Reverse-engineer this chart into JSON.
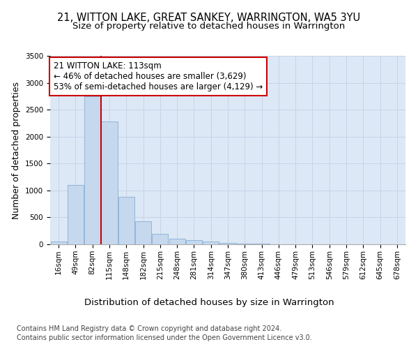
{
  "title": "21, WITTON LAKE, GREAT SANKEY, WARRINGTON, WA5 3YU",
  "subtitle": "Size of property relative to detached houses in Warrington",
  "xlabel": "Distribution of detached houses by size in Warrington",
  "ylabel": "Number of detached properties",
  "bin_labels": [
    "16sqm",
    "49sqm",
    "82sqm",
    "115sqm",
    "148sqm",
    "182sqm",
    "215sqm",
    "248sqm",
    "281sqm",
    "314sqm",
    "347sqm",
    "380sqm",
    "413sqm",
    "446sqm",
    "479sqm",
    "513sqm",
    "546sqm",
    "579sqm",
    "612sqm",
    "645sqm",
    "678sqm"
  ],
  "bar_values": [
    50,
    1100,
    2750,
    2280,
    880,
    430,
    200,
    110,
    75,
    55,
    30,
    15,
    10,
    5,
    0,
    0,
    0,
    0,
    0,
    0,
    0
  ],
  "bar_color": "#c5d8ee",
  "bar_edge_color": "#8aafd4",
  "vline_x": 2.5,
  "vline_color": "#cc0000",
  "annotation_text": "21 WITTON LAKE: 113sqm\n← 46% of detached houses are smaller (3,629)\n53% of semi-detached houses are larger (4,129) →",
  "annotation_box_color": "#ffffff",
  "annotation_box_edge": "#cc0000",
  "ylim": [
    0,
    3500
  ],
  "yticks": [
    0,
    500,
    1000,
    1500,
    2000,
    2500,
    3000,
    3500
  ],
  "grid_color": "#c8d4e8",
  "background_color": "#dce8f5",
  "footer_line1": "Contains HM Land Registry data © Crown copyright and database right 2024.",
  "footer_line2": "Contains public sector information licensed under the Open Government Licence v3.0.",
  "title_fontsize": 10.5,
  "subtitle_fontsize": 9.5,
  "ylabel_fontsize": 9,
  "xlabel_fontsize": 9.5,
  "tick_fontsize": 7.5,
  "footer_fontsize": 7,
  "annotation_fontsize": 8.5
}
